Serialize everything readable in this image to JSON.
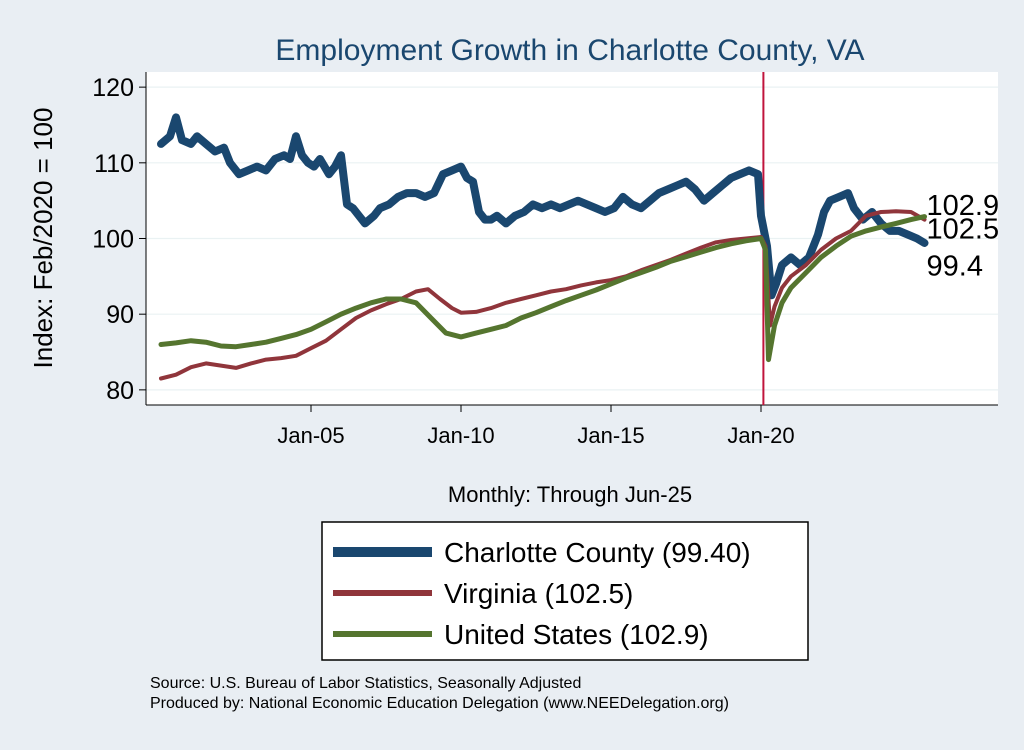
{
  "chart_data": {
    "type": "line",
    "title": "Employment Growth in Charlotte  County, VA",
    "xlabel": "Monthly: Through Jun-25",
    "ylabel": "Index: Feb/2020 = 100",
    "xlim": [
      1999.5,
      2027.9
    ],
    "ylim": [
      78,
      122
    ],
    "x_ticks": [
      2005,
      2010,
      2015,
      2020
    ],
    "x_tick_labels": [
      "Jan-05",
      "Jan-10",
      "Jan-15",
      "Jan-20"
    ],
    "y_ticks": [
      80,
      90,
      100,
      110,
      120
    ],
    "y_tick_labels": [
      "80",
      "90",
      "100",
      "110",
      "120"
    ],
    "grid": true,
    "reference_line": {
      "x": 2020.08,
      "color": "#c0143c"
    },
    "legend_position": "bottom",
    "series": [
      {
        "name": "Charlotte  County (99.40)",
        "color": "#1a476f",
        "end_label": "99.4",
        "points": [
          [
            2000.0,
            112.5
          ],
          [
            2000.3,
            113.5
          ],
          [
            2000.5,
            116.0
          ],
          [
            2000.7,
            113.0
          ],
          [
            2001.0,
            112.5
          ],
          [
            2001.2,
            113.5
          ],
          [
            2001.5,
            112.5
          ],
          [
            2001.8,
            111.5
          ],
          [
            2002.1,
            112.0
          ],
          [
            2002.3,
            110.0
          ],
          [
            2002.6,
            108.5
          ],
          [
            2002.9,
            109.0
          ],
          [
            2003.2,
            109.5
          ],
          [
            2003.5,
            109.0
          ],
          [
            2003.8,
            110.5
          ],
          [
            2004.1,
            111.0
          ],
          [
            2004.3,
            110.5
          ],
          [
            2004.5,
            113.5
          ],
          [
            2004.7,
            111.0
          ],
          [
            2004.9,
            110.0
          ],
          [
            2005.1,
            109.5
          ],
          [
            2005.3,
            110.5
          ],
          [
            2005.6,
            108.5
          ],
          [
            2005.8,
            109.5
          ],
          [
            2006.0,
            111.0
          ],
          [
            2006.2,
            104.5
          ],
          [
            2006.4,
            104.0
          ],
          [
            2006.6,
            103.0
          ],
          [
            2006.8,
            102.0
          ],
          [
            2007.1,
            103.0
          ],
          [
            2007.3,
            104.0
          ],
          [
            2007.6,
            104.5
          ],
          [
            2007.9,
            105.5
          ],
          [
            2008.2,
            106.0
          ],
          [
            2008.5,
            106.0
          ],
          [
            2008.8,
            105.5
          ],
          [
            2009.1,
            106.0
          ],
          [
            2009.4,
            108.5
          ],
          [
            2009.7,
            109.0
          ],
          [
            2010.0,
            109.5
          ],
          [
            2010.2,
            108.0
          ],
          [
            2010.4,
            107.5
          ],
          [
            2010.6,
            103.5
          ],
          [
            2010.8,
            102.5
          ],
          [
            2011.0,
            102.5
          ],
          [
            2011.2,
            103.0
          ],
          [
            2011.5,
            102.0
          ],
          [
            2011.8,
            103.0
          ],
          [
            2012.1,
            103.5
          ],
          [
            2012.4,
            104.5
          ],
          [
            2012.7,
            104.0
          ],
          [
            2013.0,
            104.5
          ],
          [
            2013.3,
            104.0
          ],
          [
            2013.6,
            104.5
          ],
          [
            2013.9,
            105.0
          ],
          [
            2014.2,
            104.5
          ],
          [
            2014.5,
            104.0
          ],
          [
            2014.8,
            103.5
          ],
          [
            2015.1,
            104.0
          ],
          [
            2015.4,
            105.5
          ],
          [
            2015.7,
            104.5
          ],
          [
            2016.0,
            104.0
          ],
          [
            2016.3,
            105.0
          ],
          [
            2016.6,
            106.0
          ],
          [
            2016.9,
            106.5
          ],
          [
            2017.2,
            107.0
          ],
          [
            2017.5,
            107.5
          ],
          [
            2017.8,
            106.5
          ],
          [
            2018.1,
            105.0
          ],
          [
            2018.4,
            106.0
          ],
          [
            2018.7,
            107.0
          ],
          [
            2019.0,
            108.0
          ],
          [
            2019.3,
            108.5
          ],
          [
            2019.6,
            109.0
          ],
          [
            2019.9,
            108.5
          ],
          [
            2020.0,
            103.0
          ],
          [
            2020.2,
            99.0
          ],
          [
            2020.35,
            92.5
          ],
          [
            2020.5,
            94.0
          ],
          [
            2020.7,
            96.5
          ],
          [
            2021.0,
            97.5
          ],
          [
            2021.3,
            96.5
          ],
          [
            2021.6,
            97.5
          ],
          [
            2021.9,
            100.5
          ],
          [
            2022.1,
            103.5
          ],
          [
            2022.3,
            105.0
          ],
          [
            2022.6,
            105.5
          ],
          [
            2022.9,
            106.0
          ],
          [
            2023.1,
            104.0
          ],
          [
            2023.4,
            102.5
          ],
          [
            2023.7,
            103.5
          ],
          [
            2024.0,
            102.0
          ],
          [
            2024.3,
            101.0
          ],
          [
            2024.6,
            101.0
          ],
          [
            2024.9,
            100.5
          ],
          [
            2025.2,
            100.0
          ],
          [
            2025.45,
            99.4
          ]
        ]
      },
      {
        "name": "Virginia (102.5)",
        "color": "#90353b",
        "end_label": "102.5",
        "points": [
          [
            2000.0,
            81.5
          ],
          [
            2000.5,
            82.0
          ],
          [
            2001.0,
            83.0
          ],
          [
            2001.5,
            83.5
          ],
          [
            2002.0,
            83.2
          ],
          [
            2002.5,
            82.9
          ],
          [
            2003.0,
            83.5
          ],
          [
            2003.5,
            84.0
          ],
          [
            2004.0,
            84.2
          ],
          [
            2004.5,
            84.5
          ],
          [
            2005.0,
            85.5
          ],
          [
            2005.5,
            86.5
          ],
          [
            2006.0,
            88.0
          ],
          [
            2006.5,
            89.5
          ],
          [
            2007.0,
            90.5
          ],
          [
            2007.5,
            91.3
          ],
          [
            2008.0,
            92.0
          ],
          [
            2008.5,
            93.0
          ],
          [
            2008.9,
            93.3
          ],
          [
            2009.3,
            92.0
          ],
          [
            2009.7,
            90.8
          ],
          [
            2010.0,
            90.2
          ],
          [
            2010.5,
            90.3
          ],
          [
            2011.0,
            90.8
          ],
          [
            2011.5,
            91.5
          ],
          [
            2012.0,
            92.0
          ],
          [
            2012.5,
            92.5
          ],
          [
            2013.0,
            93.0
          ],
          [
            2013.5,
            93.3
          ],
          [
            2014.0,
            93.8
          ],
          [
            2014.5,
            94.2
          ],
          [
            2015.0,
            94.5
          ],
          [
            2015.5,
            95.0
          ],
          [
            2016.0,
            95.8
          ],
          [
            2016.5,
            96.5
          ],
          [
            2017.0,
            97.2
          ],
          [
            2017.5,
            98.0
          ],
          [
            2018.0,
            98.8
          ],
          [
            2018.5,
            99.5
          ],
          [
            2019.0,
            99.8
          ],
          [
            2019.5,
            100.0
          ],
          [
            2020.0,
            100.2
          ],
          [
            2020.15,
            99.0
          ],
          [
            2020.3,
            88.5
          ],
          [
            2020.45,
            91.0
          ],
          [
            2020.7,
            93.5
          ],
          [
            2021.0,
            95.0
          ],
          [
            2021.5,
            96.5
          ],
          [
            2022.0,
            98.5
          ],
          [
            2022.5,
            100.0
          ],
          [
            2023.0,
            101.0
          ],
          [
            2023.5,
            103.0
          ],
          [
            2024.0,
            103.5
          ],
          [
            2024.5,
            103.6
          ],
          [
            2025.0,
            103.5
          ],
          [
            2025.45,
            102.5
          ]
        ]
      },
      {
        "name": "United States (102.9)",
        "color": "#55752f",
        "end_label": "102.9",
        "points": [
          [
            2000.0,
            86.0
          ],
          [
            2000.5,
            86.2
          ],
          [
            2001.0,
            86.5
          ],
          [
            2001.5,
            86.3
          ],
          [
            2002.0,
            85.8
          ],
          [
            2002.5,
            85.7
          ],
          [
            2003.0,
            86.0
          ],
          [
            2003.5,
            86.3
          ],
          [
            2004.0,
            86.8
          ],
          [
            2004.5,
            87.3
          ],
          [
            2005.0,
            88.0
          ],
          [
            2005.5,
            89.0
          ],
          [
            2006.0,
            90.0
          ],
          [
            2006.5,
            90.8
          ],
          [
            2007.0,
            91.5
          ],
          [
            2007.5,
            92.0
          ],
          [
            2008.0,
            92.0
          ],
          [
            2008.5,
            91.5
          ],
          [
            2009.0,
            89.5
          ],
          [
            2009.5,
            87.5
          ],
          [
            2010.0,
            87.0
          ],
          [
            2010.5,
            87.5
          ],
          [
            2011.0,
            88.0
          ],
          [
            2011.5,
            88.5
          ],
          [
            2012.0,
            89.5
          ],
          [
            2012.5,
            90.2
          ],
          [
            2013.0,
            91.0
          ],
          [
            2013.5,
            91.8
          ],
          [
            2014.0,
            92.5
          ],
          [
            2014.5,
            93.2
          ],
          [
            2015.0,
            94.0
          ],
          [
            2015.5,
            94.8
          ],
          [
            2016.0,
            95.5
          ],
          [
            2016.5,
            96.2
          ],
          [
            2017.0,
            97.0
          ],
          [
            2017.5,
            97.6
          ],
          [
            2018.0,
            98.2
          ],
          [
            2018.5,
            98.8
          ],
          [
            2019.0,
            99.3
          ],
          [
            2019.5,
            99.7
          ],
          [
            2020.0,
            100.0
          ],
          [
            2020.15,
            98.5
          ],
          [
            2020.25,
            84.0
          ],
          [
            2020.45,
            88.5
          ],
          [
            2020.7,
            91.5
          ],
          [
            2021.0,
            93.5
          ],
          [
            2021.5,
            95.5
          ],
          [
            2022.0,
            97.5
          ],
          [
            2022.5,
            99.0
          ],
          [
            2023.0,
            100.3
          ],
          [
            2023.5,
            101.0
          ],
          [
            2024.0,
            101.5
          ],
          [
            2024.5,
            102.0
          ],
          [
            2025.0,
            102.5
          ],
          [
            2025.45,
            102.9
          ]
        ]
      }
    ]
  },
  "footer": {
    "source": "Source: U.S. Bureau of Labor Statistics, Seasonally Adjusted",
    "produced_by": "Produced by: National Economic Education Delegation (www.NEEDelegation.org)"
  }
}
